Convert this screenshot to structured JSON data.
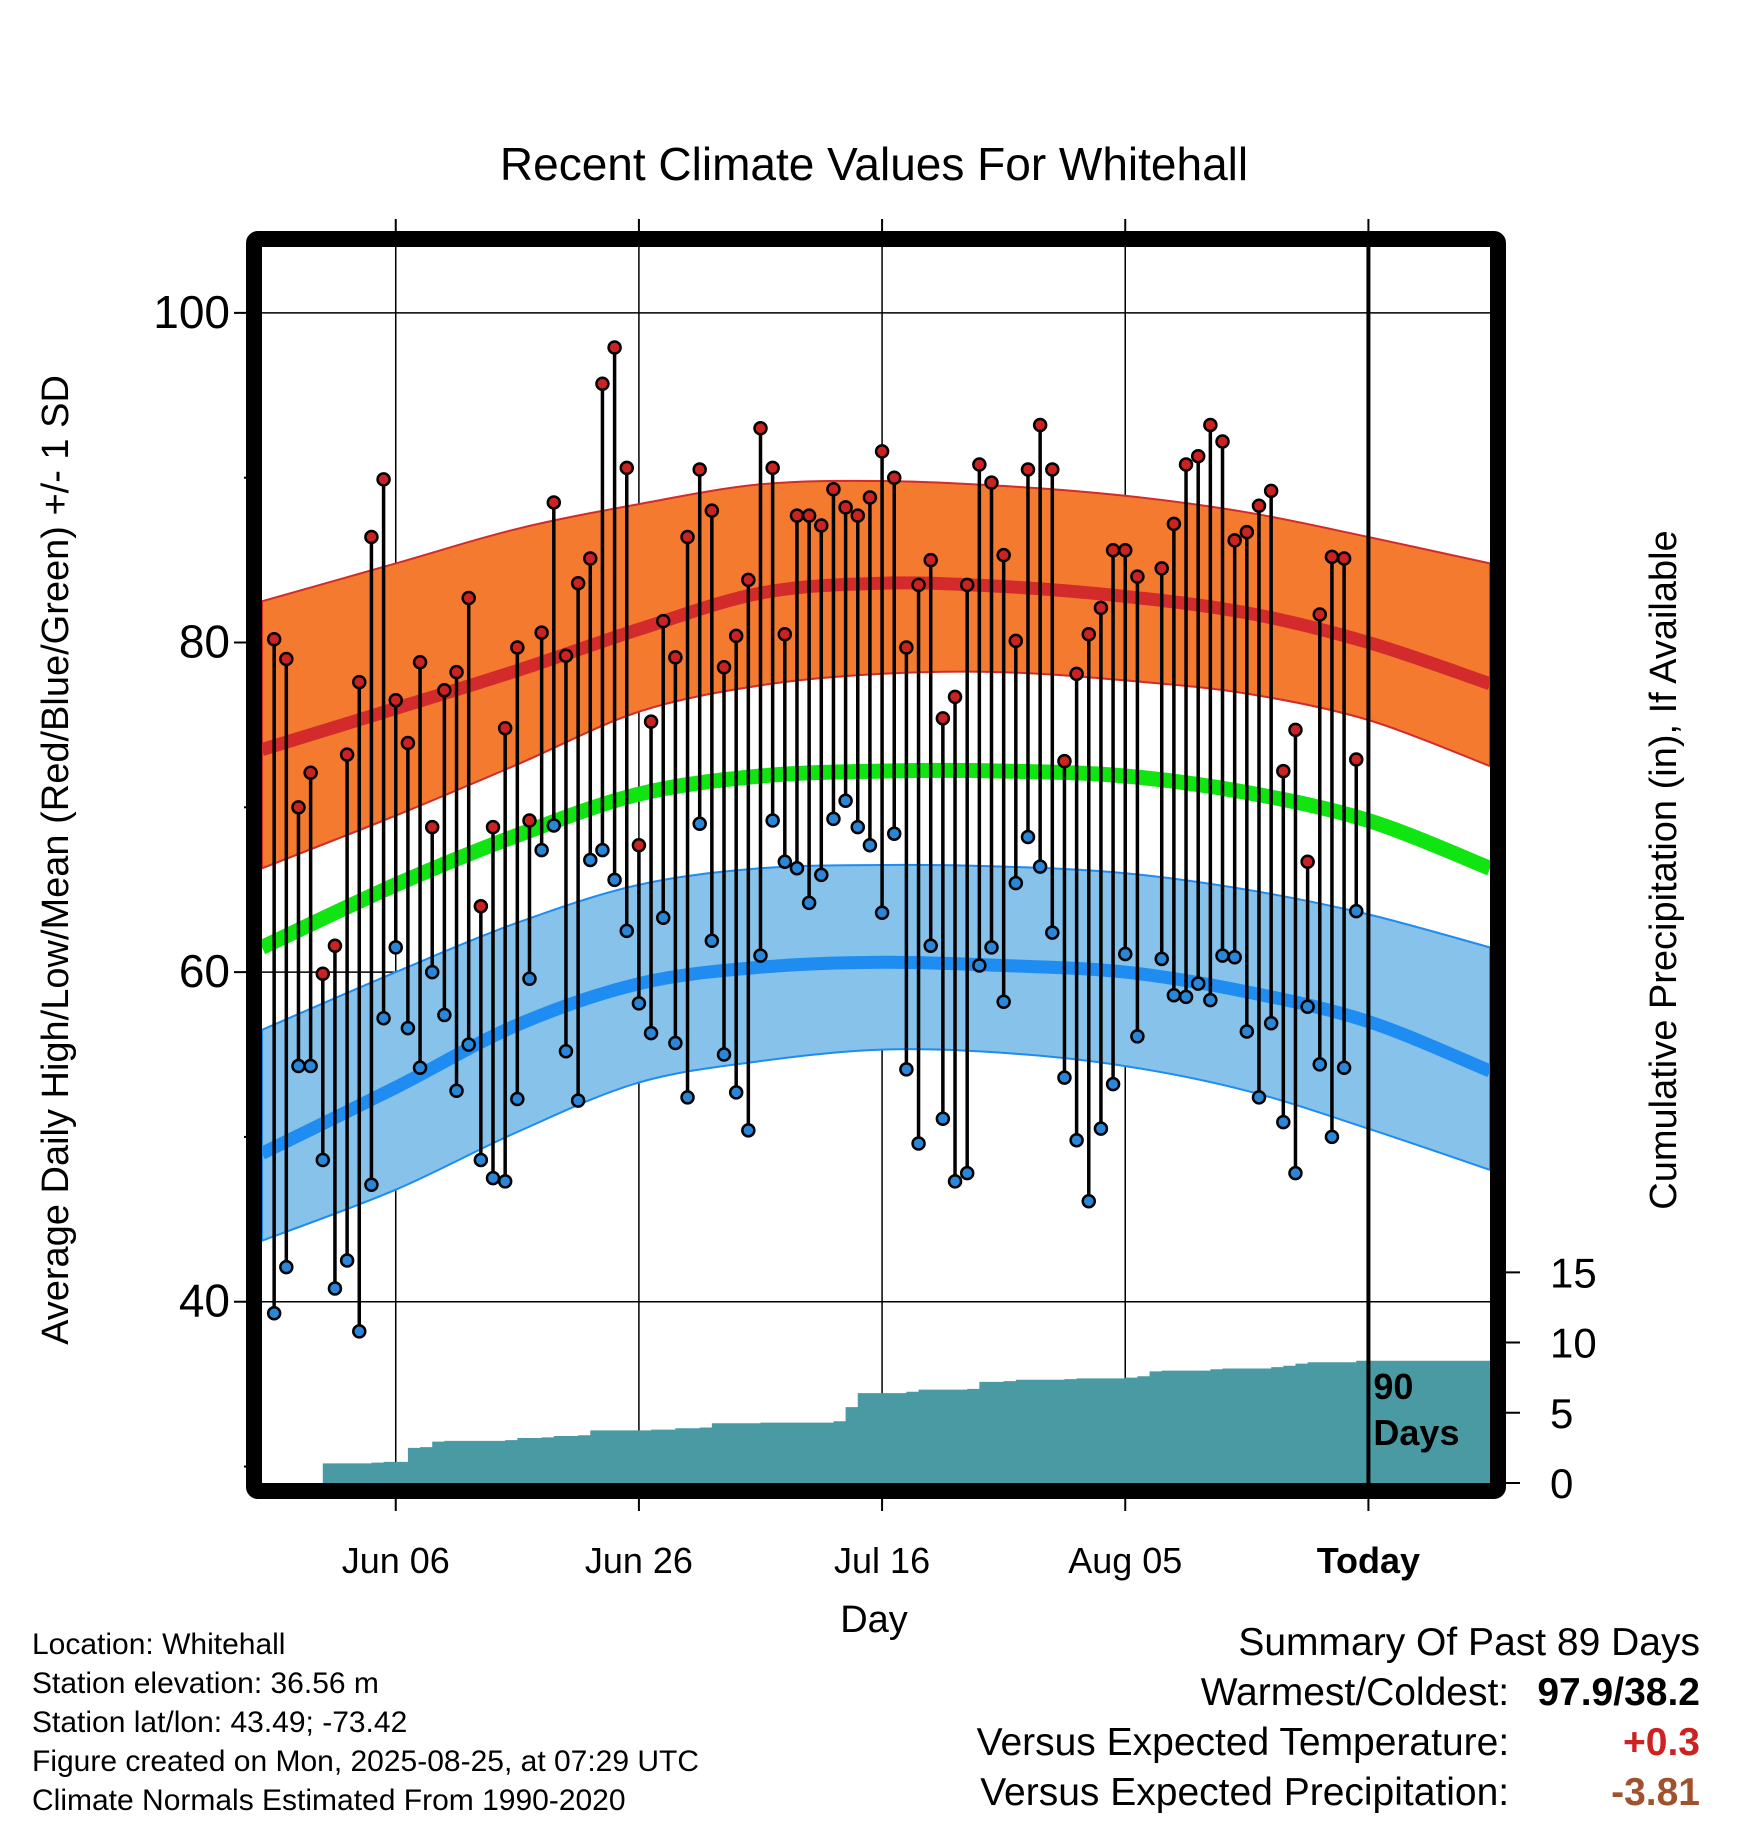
{
  "chart_data": {
    "type": "line",
    "title": "Recent Climate Values For Whitehall",
    "xlabel": "Day",
    "ylabel": "Average Daily High/Low/Mean (Red/Blue/Green) +/- 1 SD",
    "y2label": "Cumulative Precipitation (in), If Available",
    "x_range": [
      "2025-05-26",
      "2025-09-04"
    ],
    "ylim": [
      29,
      104
    ],
    "y2lim": [
      0,
      88
    ],
    "x_ticks": [
      {
        "label": "Jun 06",
        "date": "2025-06-06"
      },
      {
        "label": "Jun 26",
        "date": "2025-06-26"
      },
      {
        "label": "Jul 16",
        "date": "2025-07-16"
      },
      {
        "label": "Aug 05",
        "date": "2025-08-05"
      },
      {
        "label": "Today",
        "date": "2025-08-25"
      }
    ],
    "y_ticks": [
      "40",
      "60",
      "80",
      "100"
    ],
    "y2_ticks": [
      "0",
      "5",
      "10",
      "15"
    ],
    "today_date": "2025-08-25",
    "today_label_line1": "90",
    "today_label_line2": "Days",
    "colors": {
      "high_band": "#f47a30",
      "high_mean": "#d32b2b",
      "low_band": "#86c2ea",
      "low_mean": "#1e8cf0",
      "mean": "#11e511",
      "precip": "#4a9aa3",
      "high_dot": "#cc2222",
      "low_dot": "#2a86d8"
    },
    "normals": {
      "dates": [
        "2025-05-26",
        "2025-06-06",
        "2025-06-16",
        "2025-06-26",
        "2025-07-06",
        "2025-07-16",
        "2025-07-26",
        "2025-08-05",
        "2025-08-15",
        "2025-08-25",
        "2025-09-04"
      ],
      "high_mean": [
        73.5,
        76.0,
        78.3,
        80.8,
        83.0,
        83.6,
        83.4,
        82.8,
        81.8,
        80.0,
        77.5
      ],
      "high_upper": [
        82.5,
        84.8,
        86.9,
        88.4,
        89.6,
        89.8,
        89.5,
        88.9,
        87.9,
        86.4,
        84.8
      ],
      "high_lower": [
        66.3,
        69.5,
        72.6,
        75.8,
        77.4,
        78.1,
        78.2,
        77.7,
        76.9,
        75.3,
        72.5
      ],
      "mean": [
        61.5,
        65.3,
        68.3,
        70.8,
        71.9,
        72.2,
        72.2,
        71.9,
        70.9,
        69.2,
        66.3
      ],
      "low_mean": [
        49.0,
        53.0,
        56.8,
        59.3,
        60.3,
        60.6,
        60.4,
        60.0,
        58.8,
        57.0,
        54.0
      ],
      "low_upper": [
        56.5,
        60.0,
        63.0,
        65.3,
        66.3,
        66.5,
        66.4,
        66.0,
        65.0,
        63.5,
        61.5
      ],
      "low_lower": [
        43.7,
        46.8,
        50.3,
        53.3,
        54.6,
        55.3,
        55.1,
        54.3,
        52.8,
        50.5,
        48.0
      ]
    },
    "daily": [
      {
        "date": "2025-05-27",
        "high": 80.2,
        "low": 39.3
      },
      {
        "date": "2025-05-28",
        "high": 79.0,
        "low": 42.1
      },
      {
        "date": "2025-05-29",
        "high": 70.0,
        "low": 54.3
      },
      {
        "date": "2025-05-30",
        "high": 72.1,
        "low": 54.3
      },
      {
        "date": "2025-05-31",
        "high": 59.9,
        "low": 48.6
      },
      {
        "date": "2025-06-01",
        "high": 61.6,
        "low": 40.8
      },
      {
        "date": "2025-06-02",
        "high": 73.2,
        "low": 42.5
      },
      {
        "date": "2025-06-03",
        "high": 77.6,
        "low": 38.2
      },
      {
        "date": "2025-06-04",
        "high": 86.4,
        "low": 47.1
      },
      {
        "date": "2025-06-05",
        "high": 89.9,
        "low": 57.2
      },
      {
        "date": "2025-06-06",
        "high": 76.5,
        "low": 61.5
      },
      {
        "date": "2025-06-07",
        "high": 73.9,
        "low": 56.6
      },
      {
        "date": "2025-06-08",
        "high": 78.8,
        "low": 54.2
      },
      {
        "date": "2025-06-09",
        "high": 68.8,
        "low": 60.0
      },
      {
        "date": "2025-06-10",
        "high": 77.1,
        "low": 57.4
      },
      {
        "date": "2025-06-11",
        "high": 78.2,
        "low": 52.8
      },
      {
        "date": "2025-06-12",
        "high": 82.7,
        "low": 55.6
      },
      {
        "date": "2025-06-13",
        "high": 64.0,
        "low": 48.6
      },
      {
        "date": "2025-06-14",
        "high": 68.8,
        "low": 47.5
      },
      {
        "date": "2025-06-15",
        "high": 74.8,
        "low": 47.3
      },
      {
        "date": "2025-06-16",
        "high": 79.7,
        "low": 52.3
      },
      {
        "date": "2025-06-17",
        "high": 69.2,
        "low": 59.6
      },
      {
        "date": "2025-06-18",
        "high": 80.6,
        "low": 67.4
      },
      {
        "date": "2025-06-19",
        "high": 88.5,
        "low": 68.9
      },
      {
        "date": "2025-06-20",
        "high": 79.2,
        "low": 55.2
      },
      {
        "date": "2025-06-21",
        "high": 83.6,
        "low": 52.2
      },
      {
        "date": "2025-06-22",
        "high": 85.1,
        "low": 66.8
      },
      {
        "date": "2025-06-23",
        "high": 95.7,
        "low": 67.4
      },
      {
        "date": "2025-06-24",
        "high": 97.9,
        "low": 65.6
      },
      {
        "date": "2025-06-25",
        "high": 90.6,
        "low": 62.5
      },
      {
        "date": "2025-06-26",
        "high": 67.7,
        "low": 58.1
      },
      {
        "date": "2025-06-27",
        "high": 75.2,
        "low": 56.3
      },
      {
        "date": "2025-06-28",
        "high": 81.3,
        "low": 63.3
      },
      {
        "date": "2025-06-29",
        "high": 79.1,
        "low": 55.7
      },
      {
        "date": "2025-06-30",
        "high": 86.4,
        "low": 52.4
      },
      {
        "date": "2025-07-01",
        "high": 90.5,
        "low": 69.0
      },
      {
        "date": "2025-07-02",
        "high": 88.0,
        "low": 61.9
      },
      {
        "date": "2025-07-03",
        "high": 78.5,
        "low": 55.0
      },
      {
        "date": "2025-07-04",
        "high": 80.4,
        "low": 52.7
      },
      {
        "date": "2025-07-05",
        "high": 83.8,
        "low": 50.4
      },
      {
        "date": "2025-07-06",
        "high": 93.0,
        "low": 61.0
      },
      {
        "date": "2025-07-07",
        "high": 90.6,
        "low": 69.2
      },
      {
        "date": "2025-07-08",
        "high": 80.5,
        "low": 66.7
      },
      {
        "date": "2025-07-09",
        "high": 87.7,
        "low": 66.3
      },
      {
        "date": "2025-07-10",
        "high": 87.7,
        "low": 64.2
      },
      {
        "date": "2025-07-11",
        "high": 87.1,
        "low": 65.9
      },
      {
        "date": "2025-07-12",
        "high": 89.3,
        "low": 69.3
      },
      {
        "date": "2025-07-13",
        "high": 88.2,
        "low": 70.4
      },
      {
        "date": "2025-07-14",
        "high": 87.7,
        "low": 68.8
      },
      {
        "date": "2025-07-15",
        "high": 88.8,
        "low": 67.7
      },
      {
        "date": "2025-07-16",
        "high": 91.6,
        "low": 63.6
      },
      {
        "date": "2025-07-17",
        "high": 90.0,
        "low": 68.4
      },
      {
        "date": "2025-07-18",
        "high": 79.7,
        "low": 54.1
      },
      {
        "date": "2025-07-19",
        "high": 83.5,
        "low": 49.6
      },
      {
        "date": "2025-07-20",
        "high": 85.0,
        "low": 61.6
      },
      {
        "date": "2025-07-21",
        "high": 75.4,
        "low": 51.1
      },
      {
        "date": "2025-07-22",
        "high": 76.7,
        "low": 47.3
      },
      {
        "date": "2025-07-23",
        "high": 83.5,
        "low": 47.8
      },
      {
        "date": "2025-07-24",
        "high": 90.8,
        "low": 60.4
      },
      {
        "date": "2025-07-25",
        "high": 89.7,
        "low": 61.5
      },
      {
        "date": "2025-07-26",
        "high": 85.3,
        "low": 58.2
      },
      {
        "date": "2025-07-27",
        "high": 80.1,
        "low": 65.4
      },
      {
        "date": "2025-07-28",
        "high": 90.5,
        "low": 68.2
      },
      {
        "date": "2025-07-29",
        "high": 93.2,
        "low": 66.4
      },
      {
        "date": "2025-07-30",
        "high": 90.5,
        "low": 62.4
      },
      {
        "date": "2025-07-31",
        "high": 72.8,
        "low": 53.6
      },
      {
        "date": "2025-08-01",
        "high": 78.1,
        "low": 49.8
      },
      {
        "date": "2025-08-02",
        "high": 80.5,
        "low": 46.1
      },
      {
        "date": "2025-08-03",
        "high": 82.1,
        "low": 50.5
      },
      {
        "date": "2025-08-04",
        "high": 85.6,
        "low": 53.2
      },
      {
        "date": "2025-08-05",
        "high": 85.6,
        "low": 61.1
      },
      {
        "date": "2025-08-06",
        "high": 84.0,
        "low": 56.1
      },
      {
        "date": "2025-08-08",
        "high": 84.5,
        "low": 60.8
      },
      {
        "date": "2025-08-09",
        "high": 87.2,
        "low": 58.6
      },
      {
        "date": "2025-08-10",
        "high": 90.8,
        "low": 58.5
      },
      {
        "date": "2025-08-11",
        "high": 91.3,
        "low": 59.3
      },
      {
        "date": "2025-08-12",
        "high": 93.2,
        "low": 58.3
      },
      {
        "date": "2025-08-13",
        "high": 92.2,
        "low": 61.0
      },
      {
        "date": "2025-08-14",
        "high": 86.2,
        "low": 60.9
      },
      {
        "date": "2025-08-15",
        "high": 86.7,
        "low": 56.4
      },
      {
        "date": "2025-08-16",
        "high": 88.3,
        "low": 52.4
      },
      {
        "date": "2025-08-17",
        "high": 89.2,
        "low": 56.9
      },
      {
        "date": "2025-08-18",
        "high": 72.2,
        "low": 50.9
      },
      {
        "date": "2025-08-19",
        "high": 74.7,
        "low": 47.8
      },
      {
        "date": "2025-08-20",
        "high": 66.7,
        "low": 57.9
      },
      {
        "date": "2025-08-21",
        "high": 81.7,
        "low": 54.4
      },
      {
        "date": "2025-08-22",
        "high": 85.2,
        "low": 50.0
      },
      {
        "date": "2025-08-23",
        "high": 85.1,
        "low": 54.2
      },
      {
        "date": "2025-08-24",
        "high": 72.9,
        "low": 63.7
      }
    ],
    "precip_cumulative": {
      "dates": [
        "2025-05-30",
        "2025-05-31",
        "2025-06-04",
        "2025-06-05",
        "2025-06-07",
        "2025-06-08",
        "2025-06-09",
        "2025-06-10",
        "2025-06-15",
        "2025-06-16",
        "2025-06-18",
        "2025-06-19",
        "2025-06-21",
        "2025-06-22",
        "2025-06-27",
        "2025-06-29",
        "2025-07-01",
        "2025-07-02",
        "2025-07-06",
        "2025-07-12",
        "2025-07-13",
        "2025-07-14",
        "2025-07-18",
        "2025-07-19",
        "2025-07-23",
        "2025-07-24",
        "2025-07-26",
        "2025-07-27",
        "2025-07-31",
        "2025-08-01",
        "2025-08-05",
        "2025-08-06",
        "2025-08-07",
        "2025-08-08",
        "2025-08-12",
        "2025-08-13",
        "2025-08-17",
        "2025-08-18",
        "2025-08-19",
        "2025-08-20",
        "2025-08-24",
        "2025-09-04"
      ],
      "values": [
        0.0,
        1.4,
        1.45,
        1.5,
        2.5,
        2.55,
        2.95,
        3.0,
        3.05,
        3.2,
        3.25,
        3.35,
        3.4,
        3.75,
        3.8,
        3.9,
        3.95,
        4.25,
        4.3,
        4.4,
        5.4,
        6.4,
        6.5,
        6.65,
        6.7,
        7.2,
        7.25,
        7.35,
        7.4,
        7.45,
        7.5,
        7.6,
        7.95,
        8.0,
        8.1,
        8.15,
        8.25,
        8.35,
        8.5,
        8.6,
        8.7,
        8.7
      ]
    }
  },
  "info": {
    "location": "Location: Whitehall",
    "elevation": "Station elevation: 36.56 m",
    "latlon": "Station lat/lon: 43.49; -73.42",
    "created": "Figure created on Mon, 2025-08-25, at 07:29 UTC",
    "normals": "Climate Normals Estimated From 1990-2020"
  },
  "summary": {
    "title": "Summary Of Past 89 Days",
    "warmest_coldest_label": "Warmest/Coldest:",
    "warmest_coldest_value": "97.9/38.2",
    "temp_label": "Versus Expected Temperature:",
    "temp_value": "+0.3",
    "temp_color": "#cc2222",
    "precip_label": "Versus Expected Precipitation:",
    "precip_value": "-3.81",
    "precip_color": "#a0522d"
  }
}
